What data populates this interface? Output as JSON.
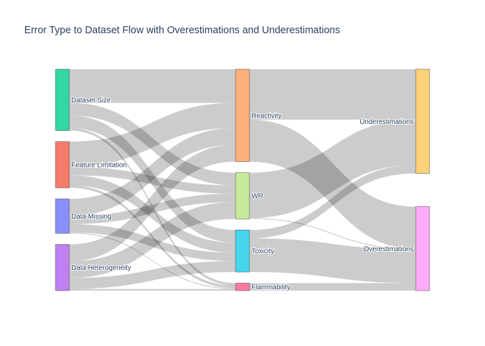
{
  "title": "Error Type to Dataset Flow with Overestimations and Underestimations",
  "chart_data": {
    "type": "sankey",
    "nodes": [
      {
        "id": "dataset_size",
        "label": "Dataset Size",
        "color": "#33d6a5"
      },
      {
        "id": "feature_limitation",
        "label": "Feature Limitation",
        "color": "#f47a6a"
      },
      {
        "id": "data_missing",
        "label": "Data Missing",
        "color": "#8a8ef8"
      },
      {
        "id": "data_heterogeneity",
        "label": "Data Heterogeneity",
        "color": "#bf80f2"
      },
      {
        "id": "reactivity",
        "label": "Reactivity",
        "color": "#fdb07a"
      },
      {
        "id": "wr",
        "label": "WR",
        "color": "#c6ea9a"
      },
      {
        "id": "toxicity",
        "label": "Toxicity",
        "color": "#45d6ee"
      },
      {
        "id": "flammability",
        "label": "Flammability",
        "color": "#fc7aa0"
      },
      {
        "id": "underestimations",
        "label": "Underestimations",
        "color": "#fed27a"
      },
      {
        "id": "overestimations",
        "label": "Overestimations",
        "color": "#fdaaf8"
      }
    ],
    "columns": [
      [
        "dataset_size",
        "feature_limitation",
        "data_missing",
        "data_heterogeneity"
      ],
      [
        "reactivity",
        "wr",
        "toxicity",
        "flammability"
      ],
      [
        "underestimations",
        "overestimations"
      ]
    ],
    "links": [
      {
        "source": "dataset_size",
        "target": "reactivity",
        "value": 40
      },
      {
        "source": "dataset_size",
        "target": "wr",
        "value": 15
      },
      {
        "source": "dataset_size",
        "target": "toxicity",
        "value": 15
      },
      {
        "source": "dataset_size",
        "target": "flammability",
        "value": 3
      },
      {
        "source": "feature_limitation",
        "target": "reactivity",
        "value": 30
      },
      {
        "source": "feature_limitation",
        "target": "wr",
        "value": 10
      },
      {
        "source": "feature_limitation",
        "target": "toxicity",
        "value": 12
      },
      {
        "source": "feature_limitation",
        "target": "flammability",
        "value": 3
      },
      {
        "source": "data_missing",
        "target": "reactivity",
        "value": 20
      },
      {
        "source": "data_missing",
        "target": "wr",
        "value": 10
      },
      {
        "source": "data_missing",
        "target": "toxicity",
        "value": 10
      },
      {
        "source": "data_missing",
        "target": "flammability",
        "value": 1
      },
      {
        "source": "data_heterogeneity",
        "target": "reactivity",
        "value": 20
      },
      {
        "source": "data_heterogeneity",
        "target": "wr",
        "value": 20
      },
      {
        "source": "data_heterogeneity",
        "target": "toxicity",
        "value": 13
      },
      {
        "source": "data_heterogeneity",
        "target": "flammability",
        "value": 2
      },
      {
        "source": "reactivity",
        "target": "underestimations",
        "value": 60
      },
      {
        "source": "reactivity",
        "target": "overestimations",
        "value": 50
      },
      {
        "source": "wr",
        "target": "underestimations",
        "value": 54
      },
      {
        "source": "wr",
        "target": "overestimations",
        "value": 1
      },
      {
        "source": "toxicity",
        "target": "underestimations",
        "value": 10
      },
      {
        "source": "toxicity",
        "target": "overestimations",
        "value": 40
      },
      {
        "source": "flammability",
        "target": "overestimations",
        "value": 9
      }
    ]
  }
}
